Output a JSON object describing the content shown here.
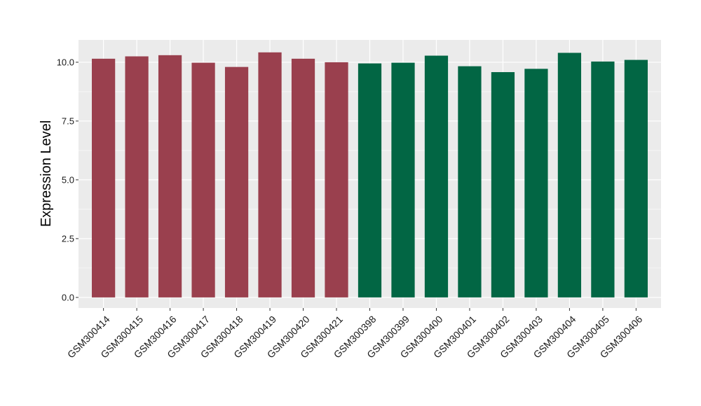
{
  "chart_data": {
    "type": "bar",
    "title": "",
    "xlabel": "",
    "ylabel": "Expression Level",
    "ylim": [
      -0.45,
      10.95
    ],
    "yticks": [
      0.0,
      2.5,
      5.0,
      7.5,
      10.0
    ],
    "ytick_labels": [
      "0.0",
      "2.5",
      "5.0",
      "7.5",
      "10.0"
    ],
    "grid": true,
    "legend": "none",
    "categories": [
      "GSM300414",
      "GSM300415",
      "GSM300416",
      "GSM300417",
      "GSM300418",
      "GSM300419",
      "GSM300420",
      "GSM300421",
      "GSM300398",
      "GSM300399",
      "GSM300400",
      "GSM300401",
      "GSM300402",
      "GSM300403",
      "GSM300404",
      "GSM300405",
      "GSM300406"
    ],
    "values": [
      10.15,
      10.25,
      10.3,
      9.98,
      9.8,
      10.42,
      10.15,
      10.0,
      9.95,
      9.98,
      10.28,
      9.83,
      9.58,
      9.72,
      10.4,
      10.03,
      10.1
    ],
    "groups": [
      "A",
      "A",
      "A",
      "A",
      "A",
      "A",
      "A",
      "A",
      "B",
      "B",
      "B",
      "B",
      "B",
      "B",
      "B",
      "B",
      "B"
    ],
    "colors": {
      "A": "#9A404E",
      "B": "#026644"
    },
    "panel_background": "#EBEBEB",
    "gridline_color": "#FFFFFF"
  }
}
